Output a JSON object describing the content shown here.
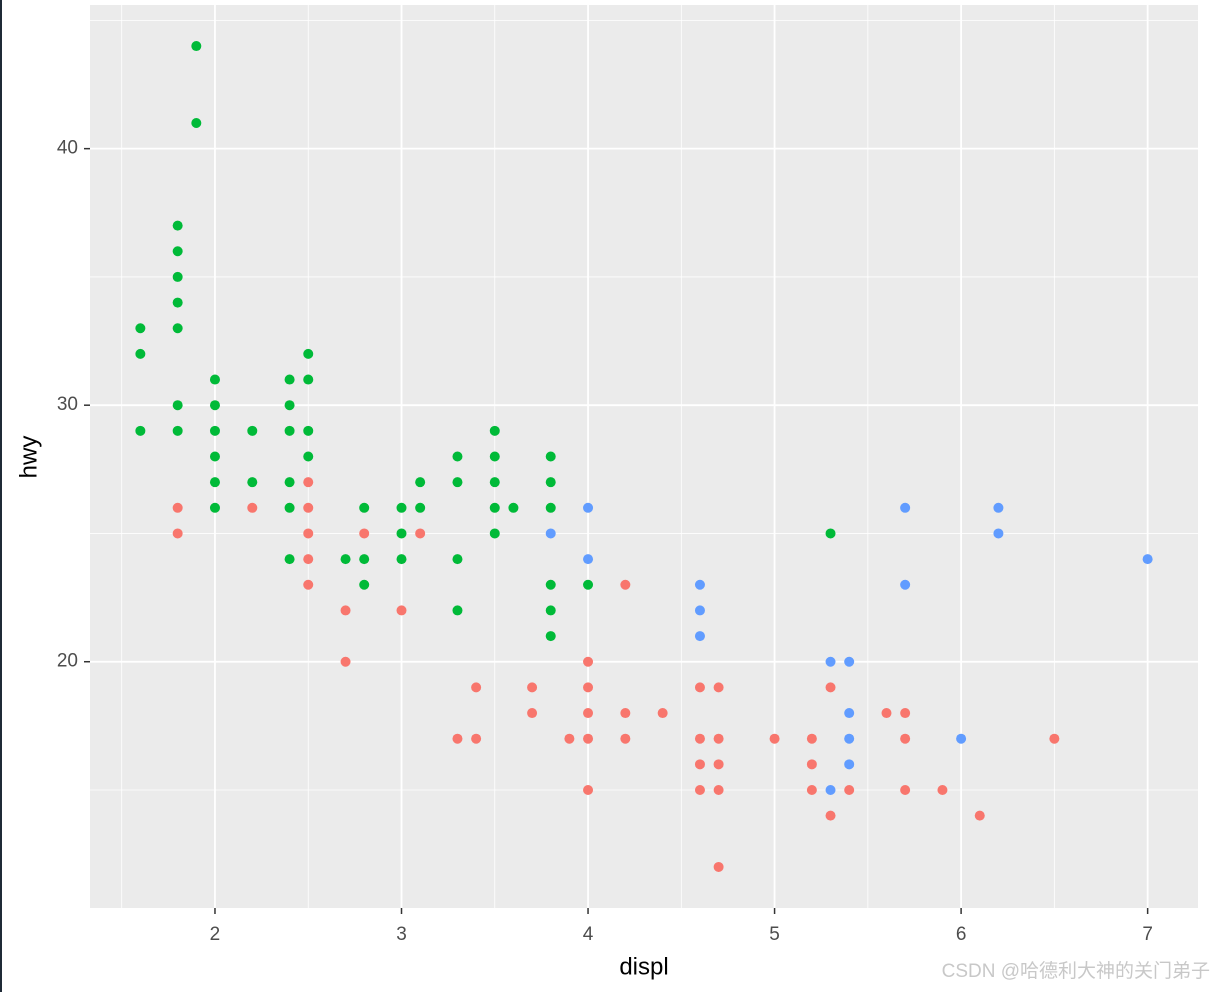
{
  "chart_data": {
    "type": "scatter",
    "x_label": "displ",
    "y_label": "hwy",
    "xlim": [
      1.33,
      7.27
    ],
    "ylim": [
      10.4,
      45.6
    ],
    "xticks": [
      2,
      3,
      4,
      5,
      6,
      7
    ],
    "yticks": [
      20,
      30,
      40
    ],
    "x_minor_grid": [
      1.5,
      2.5,
      3.5,
      4.5,
      5.5,
      6.5
    ],
    "y_minor_grid": [
      15,
      25,
      35,
      45
    ],
    "grid": true,
    "series": [
      {
        "color": "#F8766D",
        "x": [
          1.8,
          1.8,
          2.2,
          2.5,
          2.5,
          2.5,
          2.5,
          2.5,
          2.7,
          2.7,
          2.8,
          3.0,
          3.1,
          3.3,
          3.4,
          3.4,
          3.7,
          3.7,
          3.9,
          4.0,
          4.0,
          4.0,
          4.0,
          4.0,
          4.2,
          4.2,
          4.2,
          4.4,
          4.6,
          4.6,
          4.6,
          4.6,
          4.7,
          4.7,
          4.7,
          4.7,
          4.7,
          5.0,
          5.2,
          5.2,
          5.2,
          5.3,
          5.3,
          5.4,
          5.6,
          5.7,
          5.7,
          5.7,
          5.9,
          6.1,
          6.5
        ],
        "y": [
          26,
          25,
          26,
          27,
          26,
          25,
          24,
          23,
          22,
          20,
          25,
          22,
          25,
          17,
          19,
          17,
          19,
          18,
          17,
          20,
          19,
          18,
          17,
          15,
          23,
          18,
          17,
          18,
          19,
          17,
          16,
          15,
          19,
          17,
          16,
          15,
          12,
          17,
          17,
          16,
          15,
          19,
          14,
          15,
          18,
          18,
          17,
          15,
          15,
          14,
          17
        ]
      },
      {
        "color": "#00BA38",
        "x": [
          1.9,
          1.9,
          1.8,
          1.8,
          1.8,
          1.8,
          1.8,
          1.8,
          1.8,
          1.6,
          1.6,
          1.6,
          2.0,
          2.0,
          2.0,
          2.0,
          2.0,
          2.0,
          2.2,
          2.2,
          2.4,
          2.4,
          2.4,
          2.4,
          2.4,
          2.4,
          2.5,
          2.5,
          2.5,
          2.5,
          2.7,
          2.8,
          2.8,
          2.8,
          3.0,
          3.0,
          3.0,
          3.1,
          3.1,
          3.3,
          3.3,
          3.3,
          3.3,
          3.5,
          3.5,
          3.5,
          3.5,
          3.5,
          3.6,
          3.8,
          3.8,
          3.8,
          3.8,
          3.8,
          3.8,
          4.0,
          5.3
        ],
        "y": [
          44,
          41,
          37,
          36,
          35,
          34,
          33,
          30,
          29,
          33,
          32,
          29,
          31,
          30,
          29,
          28,
          27,
          26,
          29,
          27,
          31,
          30,
          29,
          27,
          26,
          24,
          32,
          31,
          29,
          28,
          24,
          26,
          24,
          23,
          26,
          25,
          24,
          27,
          26,
          28,
          27,
          24,
          22,
          29,
          28,
          27,
          26,
          25,
          26,
          28,
          27,
          26,
          23,
          22,
          21,
          23,
          25
        ]
      },
      {
        "color": "#619CFF",
        "x": [
          3.8,
          4.0,
          4.0,
          4.6,
          4.6,
          4.6,
          5.3,
          5.3,
          5.4,
          5.4,
          5.4,
          5.4,
          5.7,
          5.7,
          6.0,
          6.2,
          6.2,
          7.0
        ],
        "y": [
          25,
          26,
          24,
          23,
          22,
          21,
          20,
          15,
          20,
          18,
          17,
          16,
          26,
          23,
          17,
          26,
          25,
          24
        ]
      }
    ],
    "watermark": "CSDN @哈德利大神的关门弟子"
  }
}
